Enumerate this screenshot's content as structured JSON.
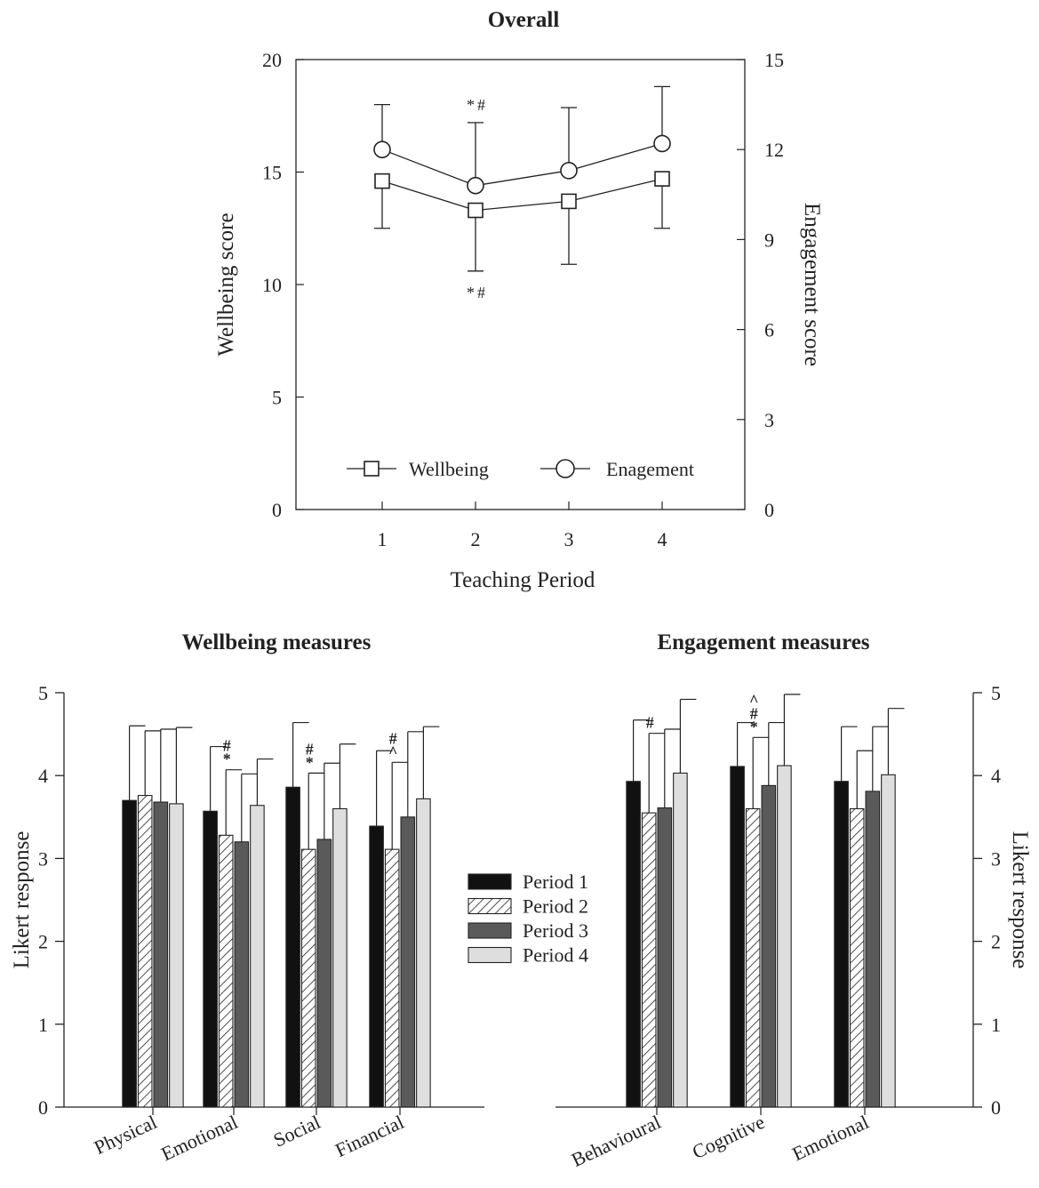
{
  "chart_data": [
    {
      "id": "overall",
      "type": "line",
      "title": "Overall",
      "xlabel": "Teaching Period",
      "ylabel": "Wellbeing score",
      "y2label": "Engagement score",
      "x": [
        "1",
        "2",
        "3",
        "4"
      ],
      "ylim": [
        0,
        20
      ],
      "y2lim": [
        0,
        15
      ],
      "yticks": [
        "0",
        "5",
        "10",
        "15",
        "20"
      ],
      "y2ticks": [
        "0",
        "3",
        "6",
        "9",
        "12",
        "15"
      ],
      "legend_position": "bottom",
      "grid": false,
      "series": [
        {
          "name": "Wellbeing",
          "axis": "left",
          "marker": "square",
          "values": [
            14.6,
            13.3,
            13.7,
            14.7
          ],
          "error": [
            2.1,
            2.7,
            2.8,
            2.2
          ],
          "error_direction": "down",
          "annotations": [
            {
              "x": "2",
              "text": "*#"
            }
          ]
        },
        {
          "name": "Enagement",
          "axis": "right",
          "marker": "circle",
          "values": [
            12.0,
            10.8,
            11.3,
            12.2
          ],
          "error": [
            1.5,
            2.1,
            2.1,
            1.9
          ],
          "error_direction": "up",
          "annotations": [
            {
              "x": "2",
              "text": "*#"
            }
          ]
        }
      ]
    },
    {
      "id": "wellbeing",
      "type": "bar",
      "title": "Wellbeing measures",
      "ylabel": "Likert response",
      "ylim": [
        0,
        5
      ],
      "yticks": [
        "0",
        "1",
        "2",
        "3",
        "4",
        "5"
      ],
      "axis_side": "left",
      "categories": [
        "Physical",
        "Emotional",
        "Social",
        "Financial"
      ],
      "series": [
        {
          "name": "Period 1",
          "values": [
            3.7,
            3.57,
            3.86,
            3.39
          ],
          "error": [
            0.9,
            0.78,
            0.78,
            0.91
          ]
        },
        {
          "name": "Period 2",
          "values": [
            3.76,
            3.28,
            3.11,
            3.11
          ],
          "error": [
            0.78,
            0.79,
            0.92,
            1.05
          ]
        },
        {
          "name": "Period 3",
          "values": [
            3.68,
            3.2,
            3.23,
            3.5
          ],
          "error": [
            0.88,
            0.82,
            0.92,
            1.03
          ]
        },
        {
          "name": "Period 4",
          "values": [
            3.66,
            3.64,
            3.6,
            3.72
          ],
          "error": [
            0.92,
            0.56,
            0.78,
            0.87
          ]
        }
      ],
      "annotations": [
        {
          "category": "Emotional",
          "series": "Period 2",
          "lines": [
            "#",
            "*"
          ]
        },
        {
          "category": "Social",
          "series": "Period 2",
          "lines": [
            "#",
            "*"
          ]
        },
        {
          "category": "Financial",
          "series": "Period 2",
          "lines": [
            "#",
            "^"
          ]
        }
      ]
    },
    {
      "id": "engagement",
      "type": "bar",
      "title": "Engagement measures",
      "ylabel": "Likert response",
      "ylim": [
        0,
        5
      ],
      "yticks": [
        "0",
        "1",
        "2",
        "3",
        "4",
        "5"
      ],
      "axis_side": "right",
      "categories": [
        "Behavioural",
        "Cognitive",
        "Emotional"
      ],
      "series": [
        {
          "name": "Period 1",
          "values": [
            3.93,
            4.11,
            3.93
          ],
          "error": [
            0.74,
            0.53,
            0.66
          ]
        },
        {
          "name": "Period 2",
          "values": [
            3.55,
            3.6,
            3.6
          ],
          "error": [
            0.96,
            0.86,
            0.7
          ]
        },
        {
          "name": "Period 3",
          "values": [
            3.61,
            3.88,
            3.81
          ],
          "error": [
            0.95,
            0.76,
            0.78
          ]
        },
        {
          "name": "Period 4",
          "values": [
            4.03,
            4.12,
            4.01
          ],
          "error": [
            0.89,
            0.86,
            0.8
          ]
        }
      ],
      "annotations": [
        {
          "category": "Behavioural",
          "series": "Period 2",
          "lines": [
            "#"
          ]
        },
        {
          "category": "Cognitive",
          "series": "Period 2",
          "lines": [
            "^",
            "#",
            "*"
          ]
        }
      ]
    }
  ],
  "legend": {
    "entries": [
      {
        "name": "Period 1",
        "style": "solid-black",
        "color": "#111111"
      },
      {
        "name": "Period 2",
        "style": "hatched",
        "color": "#ffffff"
      },
      {
        "name": "Period 3",
        "style": "solid-dark-gray",
        "color": "#5a5a5a"
      },
      {
        "name": "Period 4",
        "style": "solid-light-gray",
        "color": "#dedede"
      }
    ]
  }
}
